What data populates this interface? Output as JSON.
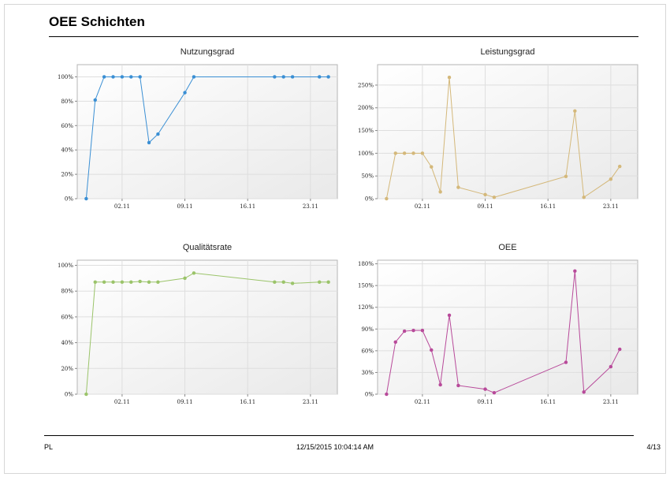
{
  "report": {
    "title": "OEE Schichten"
  },
  "footer": {
    "left": "PL",
    "center": "12/15/2015 10:04:14 AM",
    "right": "4/13"
  },
  "chart_data": [
    {
      "type": "line",
      "title": "Nutzungsgrad",
      "color": "#3a8fd4",
      "x_ticks": [
        "02.11",
        "09.11",
        "16.11",
        "23.11"
      ],
      "y_ticks": [
        "0%",
        "20%",
        "40%",
        "60%",
        "80%",
        "100%"
      ],
      "ylim": [
        0,
        110
      ],
      "x": [
        "29.10",
        "30.10",
        "31.10",
        "01.11",
        "02.11",
        "03.11",
        "04.11",
        "05.11",
        "06.11",
        "09.11",
        "10.11",
        "19.11",
        "20.11",
        "21.11",
        "24.11",
        "25.11"
      ],
      "values": [
        0,
        81,
        100,
        100,
        100,
        100,
        100,
        46,
        53,
        87,
        100,
        100,
        100,
        100,
        100,
        100
      ]
    },
    {
      "type": "line",
      "title": "Leistungsgrad",
      "color": "#d4b87a",
      "x_ticks": [
        "02.11",
        "09.11",
        "16.11",
        "23.11"
      ],
      "y_ticks": [
        "0%",
        "50%",
        "100%",
        "150%",
        "200%",
        "250%"
      ],
      "ylim": [
        0,
        295
      ],
      "x": [
        "29.10",
        "30.10",
        "31.10",
        "01.11",
        "02.11",
        "03.11",
        "04.11",
        "05.11",
        "06.11",
        "09.11",
        "10.11",
        "18.11",
        "19.11",
        "20.11",
        "23.11",
        "24.11"
      ],
      "values": [
        0,
        100,
        100,
        100,
        100,
        70,
        15,
        267,
        25,
        9,
        3,
        49,
        193,
        3,
        43,
        71
      ]
    },
    {
      "type": "line",
      "title": "Qualitätsrate",
      "color": "#9bc46a",
      "x_ticks": [
        "02.11",
        "09.11",
        "16.11",
        "23.11"
      ],
      "y_ticks": [
        "0%",
        "20%",
        "40%",
        "60%",
        "80%",
        "100%"
      ],
      "ylim": [
        0,
        104
      ],
      "x": [
        "29.10",
        "30.10",
        "31.10",
        "01.11",
        "02.11",
        "03.11",
        "04.11",
        "05.11",
        "06.11",
        "09.11",
        "10.11",
        "19.11",
        "20.11",
        "21.11",
        "24.11",
        "25.11"
      ],
      "values": [
        0,
        87,
        87,
        87,
        87,
        87,
        87.5,
        87,
        87,
        90,
        94,
        87,
        87,
        86,
        87,
        87
      ]
    },
    {
      "type": "line",
      "title": "OEE",
      "color": "#b84a9a",
      "x_ticks": [
        "02.11",
        "09.11",
        "16.11",
        "23.11"
      ],
      "y_ticks": [
        "0%",
        "30%",
        "60%",
        "90%",
        "120%",
        "150%",
        "180%"
      ],
      "ylim": [
        0,
        185
      ],
      "x": [
        "29.10",
        "30.10",
        "31.10",
        "01.11",
        "02.11",
        "03.11",
        "04.11",
        "05.11",
        "06.11",
        "09.11",
        "10.11",
        "18.11",
        "19.11",
        "20.11",
        "23.11",
        "24.11"
      ],
      "values": [
        0,
        72,
        87,
        88,
        88,
        61,
        13,
        109,
        12,
        7,
        2,
        44,
        170,
        3,
        38,
        62
      ]
    }
  ]
}
